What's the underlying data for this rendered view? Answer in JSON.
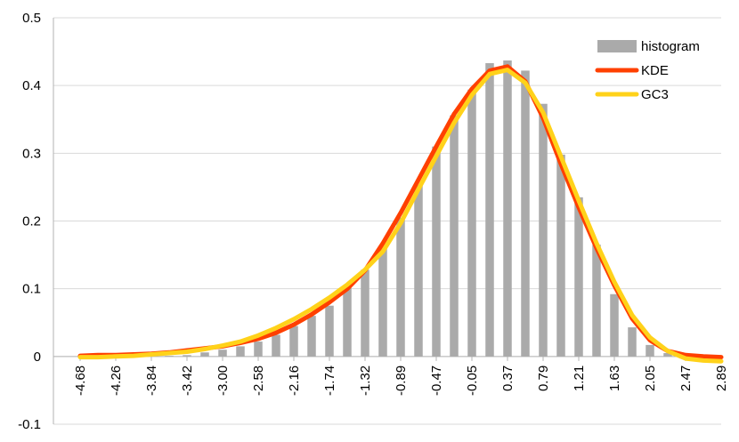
{
  "chart_data": {
    "type": "bar",
    "title": "",
    "xlabel": "",
    "ylabel": "",
    "ylim": [
      -0.1,
      0.5
    ],
    "yticks": [
      "-0.1",
      "0",
      "0.1",
      "0.2",
      "0.3",
      "0.4",
      "0.5"
    ],
    "grid": true,
    "legend_position": "top-right",
    "categories": [
      "-4.68",
      "-4.47",
      "-4.26",
      "-4.05",
      "-3.84",
      "-3.63",
      "-3.42",
      "-3.21",
      "-3.00",
      "-2.79",
      "-2.58",
      "-2.37",
      "-2.16",
      "-1.95",
      "-1.74",
      "-1.53",
      "-1.32",
      "-1.10",
      "-0.89",
      "-0.68",
      "-0.47",
      "-0.26",
      "-0.05",
      "0.16",
      "0.37",
      "0.58",
      "0.79",
      "1.00",
      "1.21",
      "1.42",
      "1.63",
      "1.84",
      "2.05",
      "2.26",
      "2.47",
      "2.68",
      "2.89"
    ],
    "x_tick_labels": [
      "-4.68",
      "-4.26",
      "-3.84",
      "-3.42",
      "-3.00",
      "-2.58",
      "-2.16",
      "-1.74",
      "-1.32",
      "-0.89",
      "-0.47",
      "-0.05",
      "0.37",
      "0.79",
      "1.21",
      "1.63",
      "2.05",
      "2.47",
      "2.89"
    ],
    "series": [
      {
        "name": "histogram",
        "type": "bar",
        "color": "#aaaaaa",
        "values": [
          0,
          0,
          0,
          0,
          0,
          0.001,
          0.002,
          0.006,
          0.01,
          0.015,
          0.022,
          0.032,
          0.045,
          0.06,
          0.075,
          0.103,
          0.128,
          0.163,
          0.205,
          0.253,
          0.31,
          0.356,
          0.394,
          0.433,
          0.437,
          0.422,
          0.373,
          0.298,
          0.235,
          0.165,
          0.092,
          0.043,
          0.017,
          0.005,
          0.001,
          0,
          0
        ]
      },
      {
        "name": "KDE",
        "type": "line",
        "color": "#ff4000",
        "values": [
          0.001,
          0.002,
          0.002,
          0.003,
          0.004,
          0.006,
          0.009,
          0.012,
          0.015,
          0.02,
          0.026,
          0.035,
          0.047,
          0.062,
          0.08,
          0.1,
          0.127,
          0.167,
          0.212,
          0.261,
          0.31,
          0.358,
          0.395,
          0.422,
          0.428,
          0.406,
          0.352,
          0.284,
          0.22,
          0.16,
          0.105,
          0.056,
          0.024,
          0.008,
          0.002,
          0.0,
          -0.001
        ]
      },
      {
        "name": "GC3",
        "type": "line",
        "color": "#ffd21a",
        "values": [
          -0.001,
          -0.001,
          0.0,
          0.001,
          0.003,
          0.005,
          0.007,
          0.011,
          0.016,
          0.022,
          0.031,
          0.042,
          0.055,
          0.07,
          0.087,
          0.106,
          0.128,
          0.155,
          0.197,
          0.247,
          0.296,
          0.345,
          0.386,
          0.417,
          0.423,
          0.404,
          0.36,
          0.295,
          0.23,
          0.167,
          0.11,
          0.061,
          0.028,
          0.008,
          -0.003,
          -0.006,
          -0.007
        ]
      }
    ]
  }
}
